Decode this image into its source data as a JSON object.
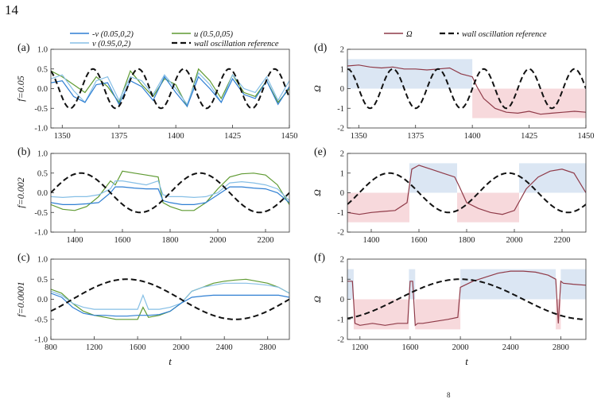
{
  "page": {
    "number": "14",
    "footer_fragment": "8"
  },
  "colors": {
    "blue": "#2f7fd3",
    "lightblue": "#86bfe6",
    "green": "#5f9a32",
    "black": "#111111",
    "omega": "#8f3a48",
    "shade_pos": "#dbe6f3",
    "shade_neg": "#f7d9dc"
  },
  "legends": {
    "left": [
      {
        "label": "-v (0.05,0,2)",
        "color": "#2f7fd3",
        "dash": false
      },
      {
        "label": "u (0.5,0,05)",
        "color": "#5f9a32",
        "dash": false
      },
      {
        "label": "v (0.95,0,2)",
        "color": "#86bfe6",
        "dash": false
      },
      {
        "label": "wall oscillation reference",
        "color": "#111111",
        "dash": true
      }
    ],
    "right": [
      {
        "label": "Ω",
        "color": "#8f3a48",
        "dash": false
      },
      {
        "label": "wall oscillation reference",
        "color": "#111111",
        "dash": true
      }
    ]
  },
  "chart_data": [
    {
      "id": "a",
      "panel_label": "(a)",
      "type": "line",
      "xlabel": "",
      "ylabel": "f=0.05",
      "xlim": [
        1345,
        1450
      ],
      "ylim": [
        -1.0,
        1.0
      ],
      "xticks": [
        1350,
        1375,
        1400,
        1425,
        1450
      ],
      "yticks": [
        -1.0,
        -0.5,
        0.0,
        0.5,
        1.0
      ],
      "series": [
        {
          "name": "u (0.5,0,05)",
          "color": "green",
          "x": [
            1345,
            1350,
            1355,
            1360,
            1365,
            1370,
            1375,
            1380,
            1385,
            1390,
            1395,
            1400,
            1405,
            1410,
            1415,
            1420,
            1425,
            1430,
            1435,
            1440,
            1445,
            1450
          ],
          "y": [
            0.45,
            0.3,
            0.1,
            -0.1,
            0.3,
            0.05,
            -0.35,
            0.45,
            0.1,
            -0.2,
            0.25,
            0.1,
            -0.45,
            0.5,
            0.2,
            -0.25,
            0.35,
            -0.1,
            -0.2,
            0.2,
            -0.35,
            0.0
          ]
        },
        {
          "name": "v (0.95,0,2)",
          "color": "lightblue",
          "x": [
            1345,
            1350,
            1355,
            1360,
            1365,
            1370,
            1375,
            1380,
            1385,
            1390,
            1395,
            1400,
            1405,
            1410,
            1415,
            1420,
            1425,
            1430,
            1435,
            1440,
            1445,
            1450
          ],
          "y": [
            0.25,
            0.35,
            -0.05,
            -0.35,
            0.2,
            0.3,
            -0.3,
            0.3,
            0.2,
            -0.15,
            0.35,
            0.0,
            -0.4,
            0.4,
            0.1,
            -0.35,
            0.35,
            0.0,
            -0.1,
            0.3,
            -0.3,
            0.2
          ]
        },
        {
          "name": "-v (0.05,0,2)",
          "color": "blue",
          "x": [
            1345,
            1350,
            1355,
            1360,
            1365,
            1370,
            1375,
            1380,
            1385,
            1390,
            1395,
            1400,
            1405,
            1410,
            1415,
            1420,
            1425,
            1430,
            1435,
            1440,
            1445,
            1450
          ],
          "y": [
            0.15,
            0.2,
            -0.2,
            -0.35,
            0.1,
            0.15,
            -0.4,
            0.2,
            0.05,
            -0.3,
            0.3,
            -0.1,
            -0.45,
            0.3,
            0.0,
            -0.35,
            0.25,
            -0.15,
            -0.25,
            0.2,
            -0.4,
            0.05
          ]
        },
        {
          "name": "wall oscillation reference",
          "color": "black",
          "dashed": true,
          "sine": {
            "amp": 0.5,
            "period": 20,
            "phase": -1.5
          }
        }
      ]
    },
    {
      "id": "b",
      "panel_label": "(b)",
      "type": "line",
      "xlabel": "",
      "ylabel": "f=0.002",
      "xlim": [
        1300,
        2300
      ],
      "ylim": [
        -1.0,
        1.0
      ],
      "xticks": [
        1400,
        1600,
        1800,
        2000,
        2200
      ],
      "yticks": [
        -1.0,
        -0.5,
        0.0,
        0.5,
        1.0
      ],
      "series": [
        {
          "name": "u (0.5,0,05)",
          "color": "green",
          "x": [
            1300,
            1350,
            1400,
            1450,
            1500,
            1550,
            1570,
            1600,
            1650,
            1700,
            1750,
            1770,
            1800,
            1850,
            1900,
            1950,
            2000,
            2050,
            2100,
            2150,
            2200,
            2250,
            2300
          ],
          "y": [
            -0.3,
            -0.42,
            -0.45,
            -0.35,
            -0.1,
            0.3,
            0.2,
            0.55,
            0.5,
            0.45,
            0.4,
            -0.25,
            -0.35,
            -0.45,
            -0.45,
            -0.25,
            0.1,
            0.4,
            0.48,
            0.5,
            0.45,
            0.2,
            -0.3
          ]
        },
        {
          "name": "v (0.95,0,2)",
          "color": "lightblue",
          "x": [
            1300,
            1350,
            1400,
            1450,
            1500,
            1550,
            1570,
            1600,
            1650,
            1700,
            1750,
            1770,
            1800,
            1850,
            1900,
            1950,
            2000,
            2050,
            2100,
            2150,
            2200,
            2250,
            2300
          ],
          "y": [
            -0.1,
            -0.12,
            -0.1,
            -0.1,
            -0.05,
            0.1,
            0.3,
            0.3,
            0.25,
            0.2,
            0.3,
            -0.05,
            -0.1,
            -0.1,
            -0.12,
            -0.1,
            0.0,
            0.25,
            0.28,
            0.25,
            0.2,
            0.1,
            -0.2
          ]
        },
        {
          "name": "-v (0.05,0,2)",
          "color": "blue",
          "x": [
            1300,
            1350,
            1400,
            1450,
            1500,
            1550,
            1570,
            1600,
            1650,
            1700,
            1750,
            1770,
            1800,
            1850,
            1900,
            1950,
            2000,
            2050,
            2100,
            2150,
            2200,
            2250,
            2300
          ],
          "y": [
            -0.25,
            -0.3,
            -0.3,
            -0.28,
            -0.25,
            0.0,
            0.15,
            0.15,
            0.12,
            0.1,
            0.1,
            -0.2,
            -0.25,
            -0.3,
            -0.3,
            -0.25,
            -0.05,
            0.15,
            0.15,
            0.12,
            0.1,
            0.0,
            -0.25
          ]
        },
        {
          "name": "wall oscillation reference",
          "color": "black",
          "dashed": true,
          "sine": {
            "amp": 0.5,
            "period": 500,
            "phase": 1300
          }
        }
      ]
    },
    {
      "id": "c",
      "panel_label": "(c)",
      "type": "line",
      "xlabel": "t",
      "ylabel": "f=0.0001",
      "xlim": [
        800,
        3000
      ],
      "ylim": [
        -1.0,
        1.0
      ],
      "xticks": [
        800,
        1200,
        1600,
        2000,
        2400,
        2800
      ],
      "yticks": [
        -1.0,
        -0.5,
        0.0,
        0.5,
        1.0
      ],
      "series": [
        {
          "name": "u (0.5,0,05)",
          "color": "green",
          "x": [
            800,
            900,
            1000,
            1100,
            1200,
            1300,
            1400,
            1500,
            1600,
            1650,
            1700,
            1800,
            1900,
            2000,
            2100,
            2200,
            2300,
            2400,
            2500,
            2600,
            2700,
            2800,
            2900,
            3000
          ],
          "y": [
            0.25,
            0.15,
            -0.1,
            -0.3,
            -0.4,
            -0.45,
            -0.5,
            -0.5,
            -0.5,
            -0.2,
            -0.45,
            -0.4,
            -0.3,
            -0.1,
            0.2,
            0.3,
            0.4,
            0.45,
            0.48,
            0.5,
            0.45,
            0.4,
            0.3,
            0.15
          ]
        },
        {
          "name": "v (0.95,0,2)",
          "color": "lightblue",
          "x": [
            800,
            900,
            1000,
            1100,
            1200,
            1300,
            1400,
            1500,
            1600,
            1650,
            1700,
            1800,
            1900,
            2000,
            2100,
            2200,
            2300,
            2400,
            2500,
            2600,
            2700,
            2800,
            2900,
            3000
          ],
          "y": [
            0.2,
            0.1,
            -0.1,
            -0.2,
            -0.25,
            -0.25,
            -0.25,
            -0.25,
            -0.25,
            0.1,
            -0.25,
            -0.25,
            -0.2,
            -0.1,
            0.2,
            0.3,
            0.35,
            0.4,
            0.4,
            0.4,
            0.38,
            0.35,
            0.3,
            0.15
          ]
        },
        {
          "name": "-v (0.05,0,2)",
          "color": "blue",
          "x": [
            800,
            900,
            1000,
            1100,
            1200,
            1300,
            1400,
            1500,
            1600,
            1650,
            1700,
            1800,
            1900,
            2000,
            2100,
            2200,
            2300,
            2400,
            2500,
            2600,
            2700,
            2800,
            2900,
            3000
          ],
          "y": [
            0.15,
            0.05,
            -0.2,
            -0.35,
            -0.4,
            -0.4,
            -0.42,
            -0.42,
            -0.4,
            -0.4,
            -0.4,
            -0.38,
            -0.3,
            -0.1,
            0.05,
            0.08,
            0.1,
            0.1,
            0.1,
            0.1,
            0.1,
            0.1,
            0.1,
            0.05
          ]
        },
        {
          "name": "wall oscillation reference",
          "color": "black",
          "dashed": true,
          "sine": {
            "amp": 0.5,
            "period": 2000,
            "phase": 1000
          }
        }
      ]
    },
    {
      "id": "d",
      "panel_label": "(d)",
      "type": "line",
      "xlabel": "",
      "ylabel": "Ω",
      "xlim": [
        1345,
        1450
      ],
      "ylim": [
        -2,
        2
      ],
      "xticks": [
        1350,
        1375,
        1400,
        1425,
        1450
      ],
      "yticks": [
        -2,
        -1,
        0,
        1,
        2
      ],
      "bands": [
        {
          "x0": 1345,
          "x1": 1400,
          "y0": 0,
          "y1": 1.5,
          "color": "shade_pos"
        },
        {
          "x0": 1400,
          "x1": 1450,
          "y0": -1.5,
          "y1": 0,
          "color": "shade_neg"
        }
      ],
      "series": [
        {
          "name": "Ω",
          "color": "omega",
          "x": [
            1345,
            1350,
            1355,
            1360,
            1365,
            1370,
            1375,
            1380,
            1385,
            1390,
            1395,
            1400,
            1402,
            1405,
            1410,
            1415,
            1420,
            1425,
            1430,
            1435,
            1440,
            1445,
            1450
          ],
          "y": [
            1.15,
            1.2,
            1.1,
            1.05,
            1.1,
            1.0,
            1.0,
            0.95,
            1.0,
            1.05,
            0.75,
            0.6,
            0.1,
            -0.5,
            -1.0,
            -1.2,
            -1.25,
            -1.15,
            -1.3,
            -1.25,
            -1.2,
            -1.15,
            -1.2
          ]
        },
        {
          "name": "wall oscillation reference",
          "color": "black",
          "dashed": true,
          "sine": {
            "amp": 1.0,
            "period": 20,
            "phase": 1340
          }
        }
      ]
    },
    {
      "id": "e",
      "panel_label": "(e)",
      "type": "line",
      "xlabel": "",
      "ylabel": "Ω",
      "xlim": [
        1300,
        2300
      ],
      "ylim": [
        -2,
        2
      ],
      "xticks": [
        1400,
        1600,
        1800,
        2000,
        2200
      ],
      "yticks": [
        -2,
        -1,
        0,
        1,
        2
      ],
      "bands": [
        {
          "x0": 1300,
          "x1": 1560,
          "y0": -1.5,
          "y1": 0,
          "color": "shade_neg"
        },
        {
          "x0": 1560,
          "x1": 1760,
          "y0": 0,
          "y1": 1.5,
          "color": "shade_pos"
        },
        {
          "x0": 1760,
          "x1": 2020,
          "y0": -1.5,
          "y1": 0,
          "color": "shade_neg"
        },
        {
          "x0": 2020,
          "x1": 2300,
          "y0": 0,
          "y1": 1.5,
          "color": "shade_pos"
        }
      ],
      "series": [
        {
          "name": "Ω",
          "color": "omega",
          "x": [
            1300,
            1350,
            1400,
            1450,
            1500,
            1550,
            1570,
            1600,
            1650,
            1700,
            1750,
            1770,
            1800,
            1850,
            1900,
            1950,
            2000,
            2050,
            2100,
            2150,
            2200,
            2250,
            2300
          ],
          "y": [
            -1.0,
            -1.1,
            -1.0,
            -0.95,
            -0.9,
            -0.5,
            1.2,
            1.4,
            1.2,
            1.0,
            0.8,
            0.3,
            -0.5,
            -0.8,
            -1.0,
            -1.1,
            -0.9,
            0.2,
            0.8,
            1.1,
            1.2,
            1.0,
            0.0
          ]
        },
        {
          "name": "wall oscillation reference",
          "color": "black",
          "dashed": true,
          "sine": {
            "amp": 1.0,
            "period": 500,
            "phase": 1350
          }
        }
      ]
    },
    {
      "id": "f",
      "panel_label": "(f)",
      "type": "line",
      "xlabel": "t",
      "ylabel": "Ω",
      "xlim": [
        1100,
        3000
      ],
      "ylim": [
        -2,
        2
      ],
      "xticks": [
        1200,
        1600,
        2000,
        2400,
        2800
      ],
      "yticks": [
        -2,
        -1,
        0,
        1,
        2
      ],
      "bands": [
        {
          "x0": 1100,
          "x1": 1150,
          "y0": 0,
          "y1": 1.5,
          "color": "shade_pos"
        },
        {
          "x0": 1150,
          "x1": 1590,
          "y0": -1.5,
          "y1": 0,
          "color": "shade_neg"
        },
        {
          "x0": 1590,
          "x1": 1640,
          "y0": 0,
          "y1": 1.5,
          "color": "shade_pos"
        },
        {
          "x0": 1640,
          "x1": 2000,
          "y0": -1.5,
          "y1": 0,
          "color": "shade_neg"
        },
        {
          "x0": 2000,
          "x1": 2760,
          "y0": 0,
          "y1": 1.5,
          "color": "shade_pos"
        },
        {
          "x0": 2760,
          "x1": 2800,
          "y0": -1.5,
          "y1": 0,
          "color": "shade_neg"
        },
        {
          "x0": 2800,
          "x1": 3000,
          "y0": 0,
          "y1": 1.5,
          "color": "shade_pos"
        }
      ],
      "series": [
        {
          "name": "Ω",
          "color": "omega",
          "x": [
            1100,
            1140,
            1160,
            1200,
            1300,
            1400,
            1500,
            1580,
            1600,
            1620,
            1640,
            1660,
            1700,
            1800,
            1900,
            1980,
            2000,
            2100,
            2200,
            2300,
            2400,
            2500,
            2600,
            2700,
            2760,
            2780,
            2800,
            2820,
            2900,
            3000
          ],
          "y": [
            0.9,
            0.9,
            -1.2,
            -1.3,
            -1.2,
            -1.3,
            -1.2,
            -1.2,
            0.9,
            0.9,
            -1.3,
            -1.2,
            -1.2,
            -1.1,
            -1.0,
            -0.9,
            0.6,
            0.9,
            1.1,
            1.3,
            1.4,
            1.4,
            1.35,
            1.2,
            1.0,
            -1.2,
            0.9,
            0.8,
            0.75,
            0.7
          ]
        },
        {
          "name": "wall oscillation reference",
          "color": "black",
          "dashed": true,
          "sine": {
            "amp": 1.0,
            "period": 2000,
            "phase": 1500
          }
        }
      ]
    }
  ]
}
